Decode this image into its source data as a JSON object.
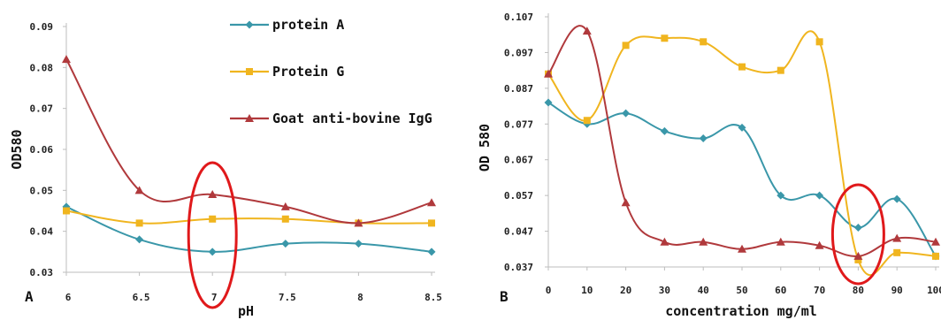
{
  "chart_data": [
    {
      "type": "line",
      "panel_label": "A",
      "xlabel": "pH",
      "ylabel": "OD580",
      "categories": [
        "6",
        "6.5",
        "7",
        "7.5",
        "8",
        "8.5"
      ],
      "ylim": [
        0.03,
        0.09
      ],
      "yticks": [
        "0.03",
        "0.04",
        "0.05",
        "0.06",
        "0.07",
        "0.08",
        "0.09"
      ],
      "grid": false,
      "legend_position": "top-right",
      "series": [
        {
          "name": "protein A",
          "color": "#3a97a9",
          "marker": "diamond",
          "values": [
            0.046,
            0.038,
            0.035,
            0.037,
            0.037,
            0.035
          ]
        },
        {
          "name": "Protein G",
          "color": "#f0b51f",
          "marker": "square",
          "values": [
            0.045,
            0.042,
            0.043,
            0.043,
            0.042,
            0.042
          ]
        },
        {
          "name": "Goat anti-bovine IgG",
          "color": "#b0393c",
          "marker": "triangle",
          "values": [
            0.082,
            0.05,
            0.049,
            0.046,
            0.042,
            0.047
          ]
        }
      ],
      "highlight": {
        "shape": "ellipse",
        "color": "#e0191b",
        "category": "7"
      }
    },
    {
      "type": "line",
      "panel_label": "B",
      "xlabel": "concentration mg/ml",
      "ylabel": "OD 580",
      "categories": [
        "0",
        "10",
        "20",
        "30",
        "40",
        "50",
        "60",
        "70",
        "80",
        "90",
        "100"
      ],
      "ylim": [
        0.037,
        0.107
      ],
      "yticks": [
        "0.037",
        "0.047",
        "0.057",
        "0.067",
        "0.077",
        "0.087",
        "0.097",
        "0.107"
      ],
      "grid": false,
      "series": [
        {
          "name": "protein A",
          "color": "#3a97a9",
          "marker": "diamond",
          "values": [
            0.083,
            0.077,
            0.08,
            0.075,
            0.073,
            0.076,
            0.057,
            0.057,
            0.048,
            0.056,
            0.04
          ]
        },
        {
          "name": "Protein G",
          "color": "#f0b51f",
          "marker": "square",
          "values": [
            0.091,
            0.078,
            0.099,
            0.101,
            0.1,
            0.093,
            0.092,
            0.1,
            0.039,
            0.041,
            0.04
          ]
        },
        {
          "name": "Goat anti-bovine IgG",
          "color": "#b0393c",
          "marker": "triangle",
          "values": [
            0.091,
            0.103,
            0.055,
            0.044,
            0.044,
            0.042,
            0.044,
            0.043,
            0.04,
            0.045,
            0.044
          ]
        }
      ],
      "highlight": {
        "shape": "ellipse",
        "color": "#e0191b",
        "category": "80"
      }
    }
  ]
}
